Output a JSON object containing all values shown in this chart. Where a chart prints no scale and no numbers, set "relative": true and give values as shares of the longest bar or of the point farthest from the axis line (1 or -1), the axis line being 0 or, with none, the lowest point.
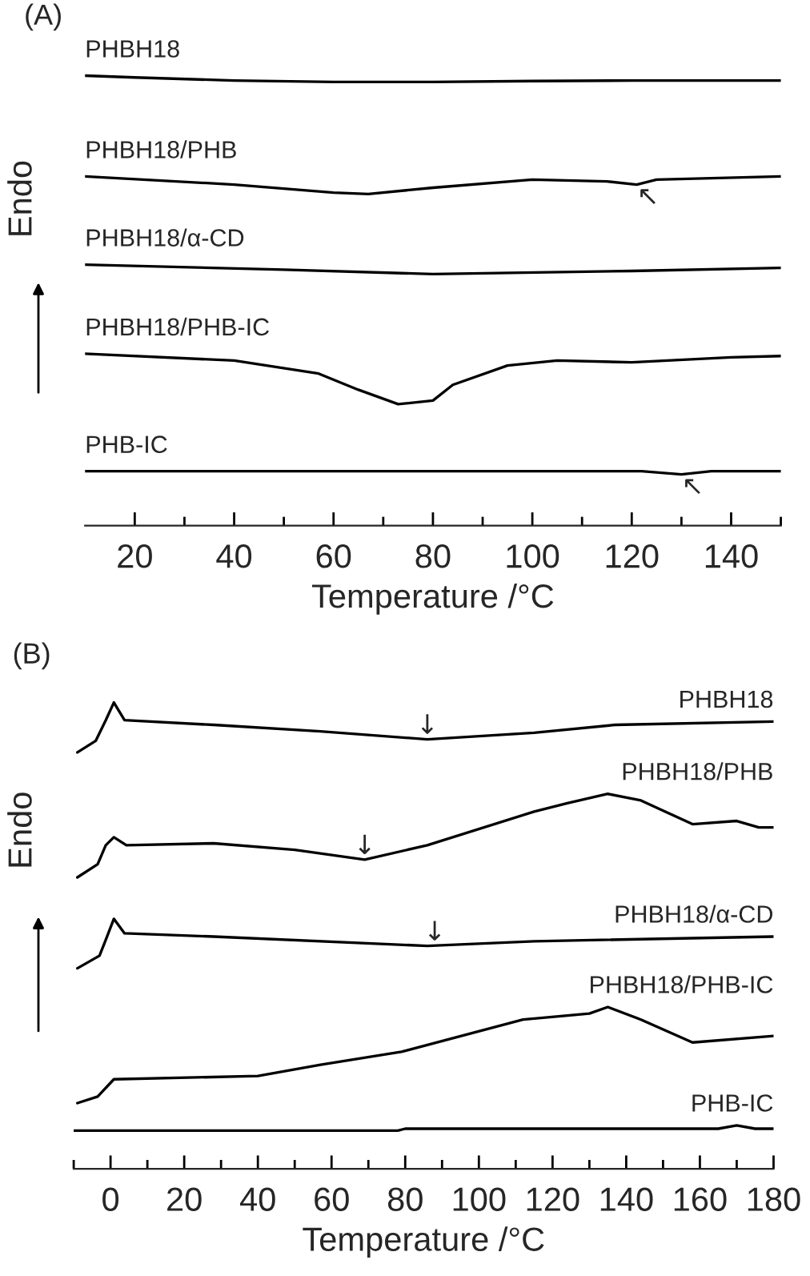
{
  "chart_data": [
    {
      "type": "line",
      "title": "(A)",
      "xlabel": "Temperature /°C",
      "ylabel": "Endo",
      "relative": true,
      "grid": false,
      "legend": false,
      "marker": "none",
      "line_style": "solid",
      "xlim": [
        10,
        150
      ],
      "xticks": [
        20,
        {
          "value": 30,
          "label": null
        },
        40,
        {
          "value": 50,
          "label": null
        },
        60,
        {
          "value": 70,
          "label": null
        },
        80,
        {
          "value": 90,
          "label": null
        },
        100,
        {
          "value": 110,
          "label": null
        },
        120,
        {
          "value": 130,
          "label": null
        },
        140,
        {
          "value": 150,
          "label": null
        }
      ],
      "series": [
        {
          "name": "PHBH18",
          "color": "#000000",
          "x": [
            10,
            20,
            40,
            60,
            80,
            100,
            120,
            150
          ],
          "values": [
            1.0,
            0.996,
            0.989,
            0.986,
            0.986,
            0.988,
            0.989,
            0.989
          ]
        },
        {
          "name": "PHBH18/PHB",
          "color": "#000000",
          "x": [
            10,
            40,
            60,
            67,
            80,
            100,
            115,
            121,
            125,
            150
          ],
          "values": [
            0.776,
            0.758,
            0.74,
            0.737,
            0.751,
            0.769,
            0.765,
            0.758,
            0.769,
            0.776
          ]
        },
        {
          "name": "PHBH18/α-CD",
          "color": "#000000",
          "x": [
            10,
            50,
            80,
            120,
            150
          ],
          "values": [
            0.58,
            0.569,
            0.559,
            0.566,
            0.573
          ]
        },
        {
          "name": "PHBH18/PHB-IC",
          "color": "#000000",
          "x": [
            10,
            40,
            57,
            65,
            73,
            80,
            84,
            95,
            105,
            120,
            140,
            150
          ],
          "values": [
            0.382,
            0.367,
            0.338,
            0.302,
            0.27,
            0.278,
            0.313,
            0.356,
            0.367,
            0.363,
            0.374,
            0.377
          ]
        },
        {
          "name": "PHB-IC",
          "color": "#000000",
          "x": [
            10,
            122,
            130,
            136,
            150
          ],
          "values": [
            0.121,
            0.121,
            0.114,
            0.121,
            0.121
          ]
        }
      ],
      "annotations": [
        {
          "text": "↖",
          "x": 121,
          "y": 0.758
        },
        {
          "text": "↖",
          "x": 130,
          "y": 0.114
        }
      ]
    },
    {
      "type": "line",
      "title": "(B)",
      "xlabel": "Temperature /°C",
      "ylabel": "Endo",
      "relative": true,
      "grid": false,
      "legend": false,
      "marker": "none",
      "line_style": "solid",
      "xlim": [
        -10,
        180
      ],
      "xticks": [
        {
          "value": -10,
          "label": null
        },
        0,
        {
          "value": 10,
          "label": null
        },
        20,
        {
          "value": 30,
          "label": null
        },
        40,
        {
          "value": 50,
          "label": null
        },
        60,
        {
          "value": 70,
          "label": null
        },
        80,
        {
          "value": 90,
          "label": null
        },
        100,
        {
          "value": 110,
          "label": null
        },
        120,
        {
          "value": 130,
          "label": null
        },
        140,
        {
          "value": 150,
          "label": null
        },
        160,
        {
          "value": 170,
          "label": null
        },
        180
      ],
      "series": [
        {
          "name": "PHBH18",
          "color": "#000000",
          "x": [
            -9,
            -4,
            -1.3,
            0.9,
            3.8,
            28,
            57,
            86,
            115,
            137,
            180
          ],
          "values": [
            0.893,
            0.918,
            0.962,
            1.0,
            0.962,
            0.952,
            0.938,
            0.921,
            0.935,
            0.952,
            0.959
          ]
        },
        {
          "name": "PHBH18/PHB",
          "color": "#000000",
          "x": [
            -9,
            -3.5,
            -1.3,
            0.9,
            4.3,
            28,
            50,
            69,
            86,
            115,
            124,
            135,
            144,
            158,
            170,
            176,
            180
          ],
          "values": [
            0.625,
            0.653,
            0.694,
            0.711,
            0.694,
            0.698,
            0.684,
            0.663,
            0.694,
            0.766,
            0.784,
            0.804,
            0.79,
            0.739,
            0.746,
            0.732,
            0.732
          ]
        },
        {
          "name": "PHBH18/α-CD",
          "color": "#000000",
          "x": [
            -9,
            -3,
            -1.3,
            0.9,
            3.8,
            28,
            86,
            115,
            180
          ],
          "values": [
            0.43,
            0.457,
            0.491,
            0.536,
            0.505,
            0.498,
            0.478,
            0.488,
            0.498
          ]
        },
        {
          "name": "PHBH18/PHB-IC",
          "color": "#000000",
          "x": [
            -9,
            -3.5,
            0.9,
            40,
            57,
            79,
            112,
            130,
            135,
            144,
            158,
            180
          ],
          "values": [
            0.141,
            0.155,
            0.192,
            0.199,
            0.223,
            0.251,
            0.32,
            0.333,
            0.347,
            0.32,
            0.271,
            0.285
          ]
        },
        {
          "name": "PHB-IC",
          "color": "#000000",
          "x": [
            -10,
            78,
            80,
            165,
            170,
            175,
            180
          ],
          "values": [
            0.082,
            0.082,
            0.086,
            0.086,
            0.093,
            0.086,
            0.086
          ]
        }
      ],
      "annotations": [
        {
          "text": "↓",
          "x": 86,
          "y": 0.921
        },
        {
          "text": "↓",
          "x": 69,
          "y": 0.663
        },
        {
          "text": "↓",
          "x": 88,
          "y": 0.478
        }
      ]
    }
  ]
}
